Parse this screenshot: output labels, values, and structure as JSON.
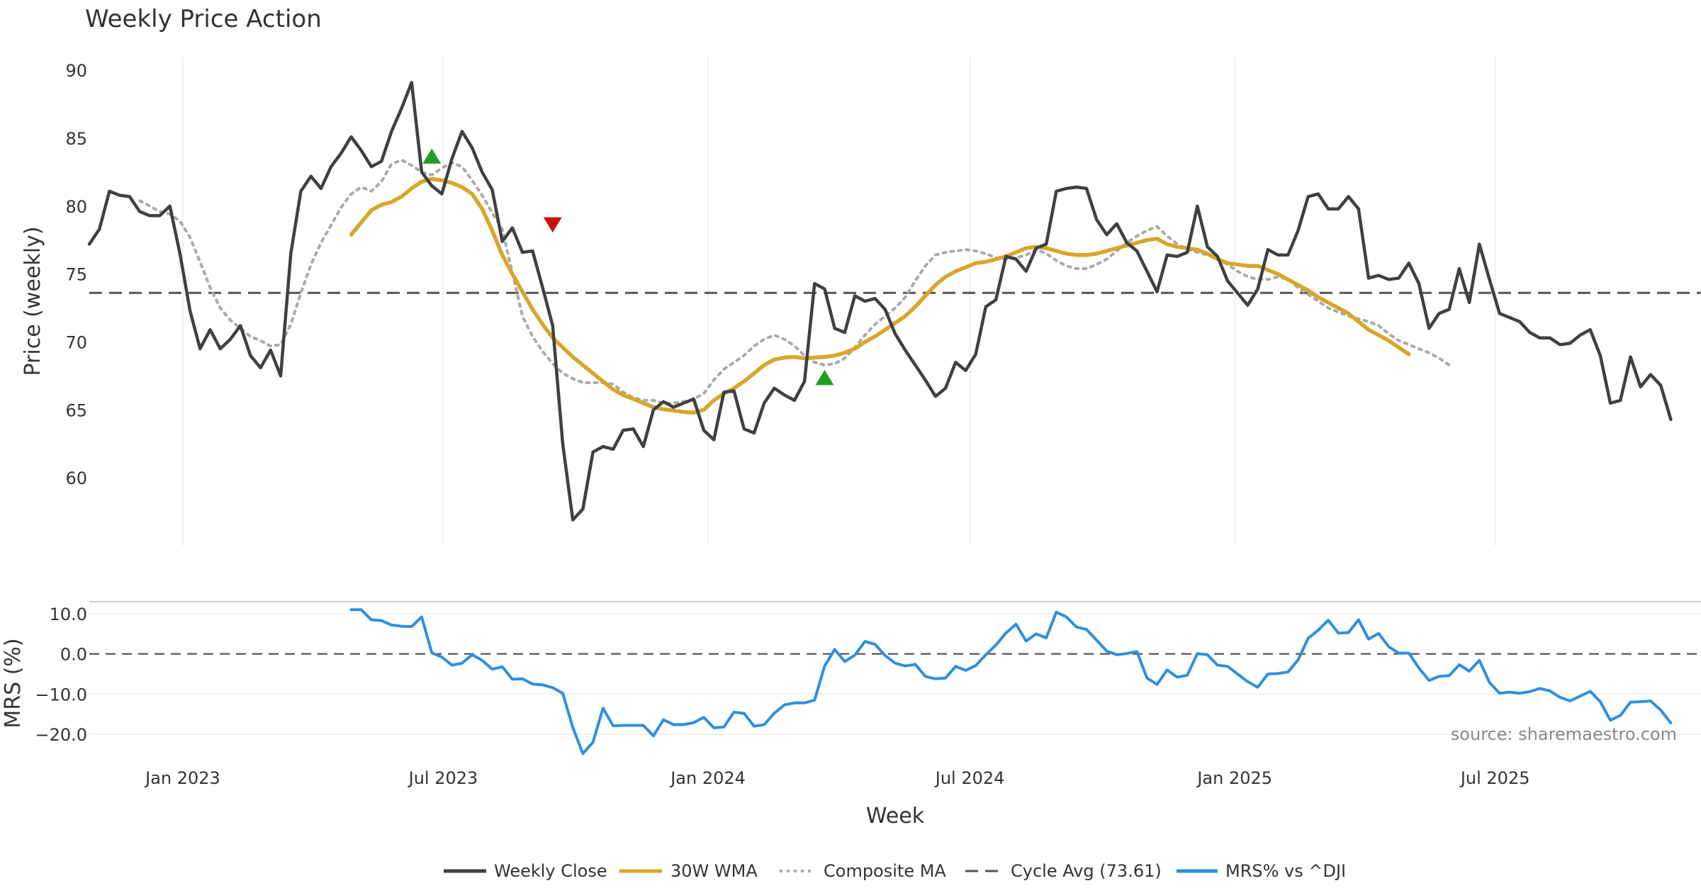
{
  "title": "Weekly Price Action",
  "colors": {
    "close": "#404040",
    "wma": "#d8a62a",
    "composite": "#aaaaaa",
    "cycle": "#555555",
    "mrs": "#2f8fe0",
    "buy": "#1fa020",
    "sell": "#cc1111"
  },
  "source": "source: sharemaestro.com",
  "chart_data": [
    {
      "type": "line",
      "name": "price-panel",
      "ylabel": "Price (weekly)",
      "ylim": [
        55,
        91
      ],
      "yticks": [
        60,
        65,
        70,
        75,
        80,
        85,
        90
      ],
      "xlim": [
        "2022-10-28",
        "2025-11-21"
      ],
      "grid": "vertical",
      "cycle_avg": 73.61,
      "series": [
        {
          "name": "Weekly Close",
          "x_start": "2022-10-28",
          "interval_days": 7,
          "values": [
            77.2,
            78.3,
            81.1,
            80.8,
            80.7,
            79.6,
            79.3,
            79.3,
            80,
            76.5,
            72.3,
            69.5,
            70.9,
            69.5,
            70.2,
            71.2,
            69,
            68.1,
            69.4,
            67.5,
            76.5,
            81.1,
            82.2,
            81.3,
            82.9,
            83.9,
            85.1,
            84.1,
            82.9,
            83.3,
            85.5,
            87.2,
            89.1,
            82.5,
            81.5,
            80.9,
            83.5,
            85.5,
            84.3,
            82.5,
            81.2,
            77.4,
            78.4,
            76.6,
            76.7,
            74,
            71.2,
            62.5,
            56.9,
            57.7,
            61.9,
            62.3,
            62.1,
            63.5,
            63.6,
            62.3,
            65,
            65.6,
            65.2,
            65.5,
            65.8,
            63.5,
            62.8,
            66.3,
            66.4,
            63.6,
            63.3,
            65.5,
            66.6,
            66.1,
            65.7,
            67.1,
            74.3,
            73.9,
            71,
            70.7,
            73.4,
            73,
            73.2,
            72.4,
            70.6,
            69.4,
            68.3,
            67.2,
            66,
            66.6,
            68.5,
            67.9,
            69.1,
            72.6,
            73.1,
            76.3,
            76.1,
            75.2,
            76.9,
            77.2,
            81.1,
            81.3,
            81.4,
            81.3,
            79,
            77.9,
            78.7,
            77.3,
            76.7,
            75.2,
            73.7,
            76.4,
            76.3,
            76.6,
            80,
            77,
            76.3,
            74.5,
            73.6,
            72.7,
            73.9,
            76.8,
            76.4,
            76.4,
            78.2,
            80.7,
            80.9,
            79.8,
            79.8,
            80.7,
            79.8,
            74.7,
            74.9,
            74.6,
            74.7,
            75.8,
            74.3,
            71,
            72.1,
            72.4,
            75.4,
            72.9,
            77.2,
            74.6,
            72.1,
            71.8,
            71.5,
            70.7,
            70.3,
            70.3,
            69.8,
            69.9,
            70.5,
            70.9,
            69,
            65.5,
            65.7,
            68.9,
            66.7,
            67.6,
            66.8,
            64.3
          ]
        },
        {
          "name": "30W WMA",
          "x_start": "2023-04-28",
          "interval_days": 7,
          "values": [
            77.9,
            78.8,
            79.7,
            80.1,
            80.3,
            80.7,
            81.3,
            81.8,
            82,
            81.9,
            81.7,
            81.4,
            80.9,
            79.8,
            78.2,
            76.4,
            75,
            73.7,
            72.4,
            71.3,
            70.3,
            69.6,
            68.9,
            68.3,
            67.7,
            67.1,
            66.5,
            66.1,
            65.8,
            65.5,
            65.2,
            65.05,
            64.95,
            64.85,
            64.8,
            65,
            65.7,
            66.2,
            66.6,
            67.1,
            67.7,
            68.3,
            68.7,
            68.85,
            68.9,
            68.8,
            68.85,
            68.9,
            69,
            69.2,
            69.5,
            70,
            70.4,
            70.9,
            71.4,
            71.9,
            72.6,
            73.4,
            74.2,
            74.8,
            75.2,
            75.5,
            75.8,
            75.9,
            76.1,
            76.3,
            76.6,
            76.9,
            77,
            76.9,
            76.7,
            76.5,
            76.4,
            76.4,
            76.5,
            76.7,
            76.9,
            77.1,
            77.3,
            77.5,
            77.6,
            77.2,
            77,
            76.9,
            76.8,
            76.5,
            76.1,
            75.8,
            75.7,
            75.6,
            75.6,
            75.3,
            75,
            74.6,
            74.2,
            73.8,
            73.3,
            72.9,
            72.5,
            72.1,
            71.5,
            70.9,
            70.5,
            70.1,
            69.6,
            69.1
          ]
        },
        {
          "name": "Composite MA",
          "x_start": "2022-12-02",
          "interval_days": 7,
          "values": [
            80.4,
            80,
            79.6,
            79.4,
            78.9,
            77.7,
            75.9,
            74,
            72.5,
            71.6,
            71,
            70.4,
            70.1,
            69.7,
            69.8,
            71.3,
            73.6,
            75.7,
            77.3,
            78.6,
            79.9,
            80.9,
            81.4,
            81.1,
            81.8,
            83.1,
            83.4,
            83,
            82.5,
            82.3,
            82.8,
            83.2,
            82.9,
            81.9,
            80.8,
            79.5,
            78.3,
            75.1,
            71.9,
            70.4,
            69.3,
            68.4,
            67.7,
            67.3,
            67,
            67,
            67,
            66.9,
            66.3,
            65.9,
            65.7,
            65.7,
            65.5,
            65.5,
            65.6,
            65.8,
            66.2,
            67.2,
            68,
            68.5,
            69,
            69.7,
            70.2,
            70.5,
            70.2,
            69.7,
            69,
            68.5,
            68.3,
            68.4,
            68.8,
            69.6,
            70.5,
            71.3,
            71.9,
            72.5,
            73.3,
            74.5,
            75.6,
            76.4,
            76.6,
            76.7,
            76.8,
            76.7,
            76.5,
            76.2,
            76.1,
            76.2,
            76.4,
            76.8,
            76.5,
            76,
            75.6,
            75.4,
            75.4,
            75.7,
            76.1,
            76.7,
            77.3,
            77.8,
            78.2,
            78.5,
            77.8,
            77.2,
            76.8,
            76.6,
            76.4,
            76.1,
            75.7,
            75.2,
            74.8,
            74.6,
            74.6,
            74.8,
            74.6,
            74,
            73.5,
            73,
            72.5,
            72.2,
            71.9,
            71.7,
            71.5,
            71.2,
            70.6,
            70.1,
            69.8,
            69.5,
            69.2,
            68.8,
            68.3
          ]
        }
      ],
      "markers": [
        {
          "type": "buy",
          "date": "2023-06-23",
          "value": 83.6
        },
        {
          "type": "sell",
          "date": "2023-09-15",
          "value": 78.7
        },
        {
          "type": "buy",
          "date": "2024-03-22",
          "value": 67.3
        }
      ]
    },
    {
      "type": "line",
      "name": "mrs-panel",
      "ylabel": "MRS (%)",
      "ylim": [
        -26,
        13
      ],
      "yticks": [
        10,
        0,
        -10,
        -20
      ],
      "ytick_labels": [
        "10.0",
        "0.0",
        "−10.0",
        "−20.0"
      ],
      "xlabel": "Week",
      "xticks": [
        "2023-01-01",
        "2023-07-01",
        "2024-01-01",
        "2024-07-01",
        "2025-01-01",
        "2025-07-01"
      ],
      "xtick_labels": [
        "Jan 2023",
        "Jul 2023",
        "Jan 2024",
        "Jul 2024",
        "Jan 2025",
        "Jul 2025"
      ],
      "series": [
        {
          "name": "MRS% vs ^DJI",
          "x_start": "2023-04-28",
          "interval_days": 7,
          "values": [
            11,
            11,
            8.5,
            8.3,
            7.2,
            6.9,
            6.8,
            9.2,
            0.3,
            -0.8,
            -2.8,
            -2.3,
            -0.2,
            -1.6,
            -3.8,
            -3.2,
            -6.3,
            -6.2,
            -7.5,
            -7.7,
            -8.4,
            -9.8,
            -18.3,
            -24.8,
            -22,
            -13.5,
            -17.9,
            -17.8,
            -17.8,
            -17.8,
            -20.4,
            -16.4,
            -17.6,
            -17.6,
            -17.1,
            -15.8,
            -18.4,
            -18.2,
            -14.5,
            -14.8,
            -18,
            -17.6,
            -14.8,
            -12.7,
            -12.2,
            -12.2,
            -11.5,
            -3,
            1.1,
            -1.9,
            -0.3,
            3.1,
            2.4,
            -0.4,
            -2.3,
            -3,
            -2.6,
            -5.6,
            -6.2,
            -6,
            -3.1,
            -4.1,
            -2.9,
            -0.2,
            2.2,
            5.2,
            7.4,
            3.2,
            5,
            4,
            10.4,
            9.2,
            6.7,
            6.1,
            3.4,
            0.7,
            -0.2,
            0.1,
            0.6,
            -6,
            -7.6,
            -4,
            -5.8,
            -5.3,
            0.1,
            -0.2,
            -2.8,
            -3.1,
            -5,
            -6.9,
            -8.3,
            -5,
            -4.9,
            -4.5,
            -1.5,
            3.9,
            5.9,
            8.4,
            5.2,
            5.3,
            8.5,
            3.7,
            5.1,
            1.8,
            0.2,
            0.2,
            -3.5,
            -6.6,
            -5.6,
            -5.4,
            -2.7,
            -4.3,
            -1.6,
            -7.1,
            -9.8,
            -9.5,
            -9.8,
            -9.4,
            -8.6,
            -9.2,
            -10.8,
            -11.7,
            -10.5,
            -9.3,
            -11.9,
            -16.5,
            -15.3,
            -12,
            -11.9,
            -11.7,
            -14,
            -17.2
          ]
        }
      ]
    }
  ],
  "legend": {
    "placement": "bottom-center",
    "items": [
      {
        "label": "Weekly Close",
        "style": "solid-dark"
      },
      {
        "label": "30W WMA",
        "style": "solid-gold"
      },
      {
        "label": "Composite MA",
        "style": "dotted-grey"
      },
      {
        "label": "Cycle Avg (73.61)",
        "style": "dashed-dark"
      },
      {
        "label": "MRS% vs ^DJI",
        "style": "solid-blue"
      }
    ]
  }
}
